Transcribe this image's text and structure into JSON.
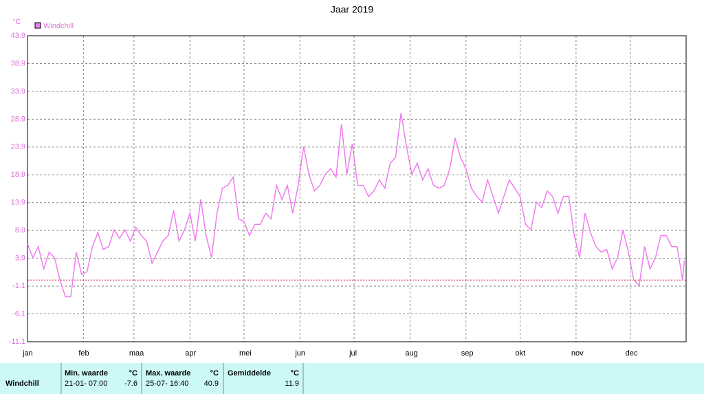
{
  "chart_data": {
    "type": "line",
    "title": "Jaar 2019",
    "ylabel": "°C",
    "xlim": [
      0,
      365
    ],
    "xticks": [
      {
        "value": 0,
        "label": "jan"
      },
      {
        "value": 31,
        "label": "feb"
      },
      {
        "value": 59,
        "label": "maa"
      },
      {
        "value": 90,
        "label": "apr"
      },
      {
        "value": 120,
        "label": "mei"
      },
      {
        "value": 151,
        "label": "jun"
      },
      {
        "value": 181,
        "label": "jul"
      },
      {
        "value": 212,
        "label": "aug"
      },
      {
        "value": 243,
        "label": "sep"
      },
      {
        "value": 273,
        "label": "okt"
      },
      {
        "value": 304,
        "label": "nov"
      },
      {
        "value": 334,
        "label": "dec"
      }
    ],
    "ylim": [
      -11.1,
      43.9
    ],
    "yticks": [
      -11.1,
      -6.1,
      -1.1,
      3.9,
      8.9,
      13.9,
      18.9,
      23.9,
      28.9,
      33.9,
      38.9,
      43.9
    ],
    "grid": true,
    "reference_line": {
      "value": 0,
      "color": "#d01030"
    },
    "x": [
      0,
      3,
      6,
      9,
      12,
      15,
      18,
      21,
      24,
      27,
      30,
      33,
      36,
      39,
      42,
      45,
      48,
      51,
      54,
      57,
      60,
      63,
      66,
      69,
      72,
      75,
      78,
      81,
      84,
      87,
      90,
      93,
      96,
      99,
      102,
      105,
      108,
      111,
      114,
      117,
      120,
      123,
      126,
      129,
      132,
      135,
      138,
      141,
      144,
      147,
      150,
      153,
      156,
      159,
      162,
      165,
      168,
      171,
      174,
      177,
      180,
      183,
      186,
      189,
      192,
      195,
      198,
      201,
      204,
      207,
      210,
      213,
      216,
      219,
      222,
      225,
      228,
      231,
      234,
      237,
      240,
      243,
      246,
      249,
      252,
      255,
      258,
      261,
      264,
      267,
      270,
      273,
      276,
      279,
      282,
      285,
      288,
      291,
      294,
      297,
      300,
      303,
      306,
      309,
      312,
      315,
      318,
      321,
      324,
      327,
      330,
      333,
      336,
      339,
      342,
      345,
      348,
      351,
      354,
      357,
      360,
      363,
      364
    ],
    "series": [
      {
        "name": "Windchill",
        "color": "#f07cf0",
        "values": [
          6.5,
          4,
          6,
          2,
          5,
          4,
          0,
          -3,
          -3,
          5,
          1,
          1.5,
          6,
          8.5,
          5.5,
          6,
          9,
          7.5,
          9,
          7,
          9.5,
          8,
          7,
          3,
          5,
          7,
          8,
          12.5,
          7,
          9,
          12,
          7,
          14.5,
          8,
          4,
          12,
          16.5,
          17,
          18.5,
          11,
          10.5,
          8,
          10,
          10,
          12,
          11,
          17,
          14.5,
          17,
          12,
          17,
          24,
          19,
          16,
          17,
          19,
          20,
          18.5,
          28,
          19,
          24.5,
          17,
          17,
          15,
          16,
          18,
          16.5,
          21,
          22,
          30,
          24,
          19,
          21,
          18,
          20,
          17,
          16.5,
          17,
          20,
          25.5,
          22,
          20,
          16.5,
          15,
          14,
          18,
          15,
          12,
          15,
          18,
          16.5,
          15,
          10,
          9,
          14,
          13,
          16,
          15,
          12,
          15,
          15,
          8,
          4,
          12,
          8.5,
          6,
          5,
          5.5,
          2,
          4,
          9,
          5,
          0,
          -1,
          6,
          2,
          4,
          8,
          8,
          6,
          6,
          0,
          3.5
        ]
      }
    ]
  },
  "summary_table": {
    "row_label": "Windchill",
    "min": {
      "header": "Min. waarde",
      "unit": "°C",
      "time": "21-01-  07:00",
      "value": -7.6
    },
    "max": {
      "header": "Max. waarde",
      "unit": "°C",
      "time": "25-07-  16:40",
      "value": 40.9
    },
    "avg": {
      "header": "Gemiddelde",
      "unit": "°C",
      "value": 11.9
    }
  }
}
